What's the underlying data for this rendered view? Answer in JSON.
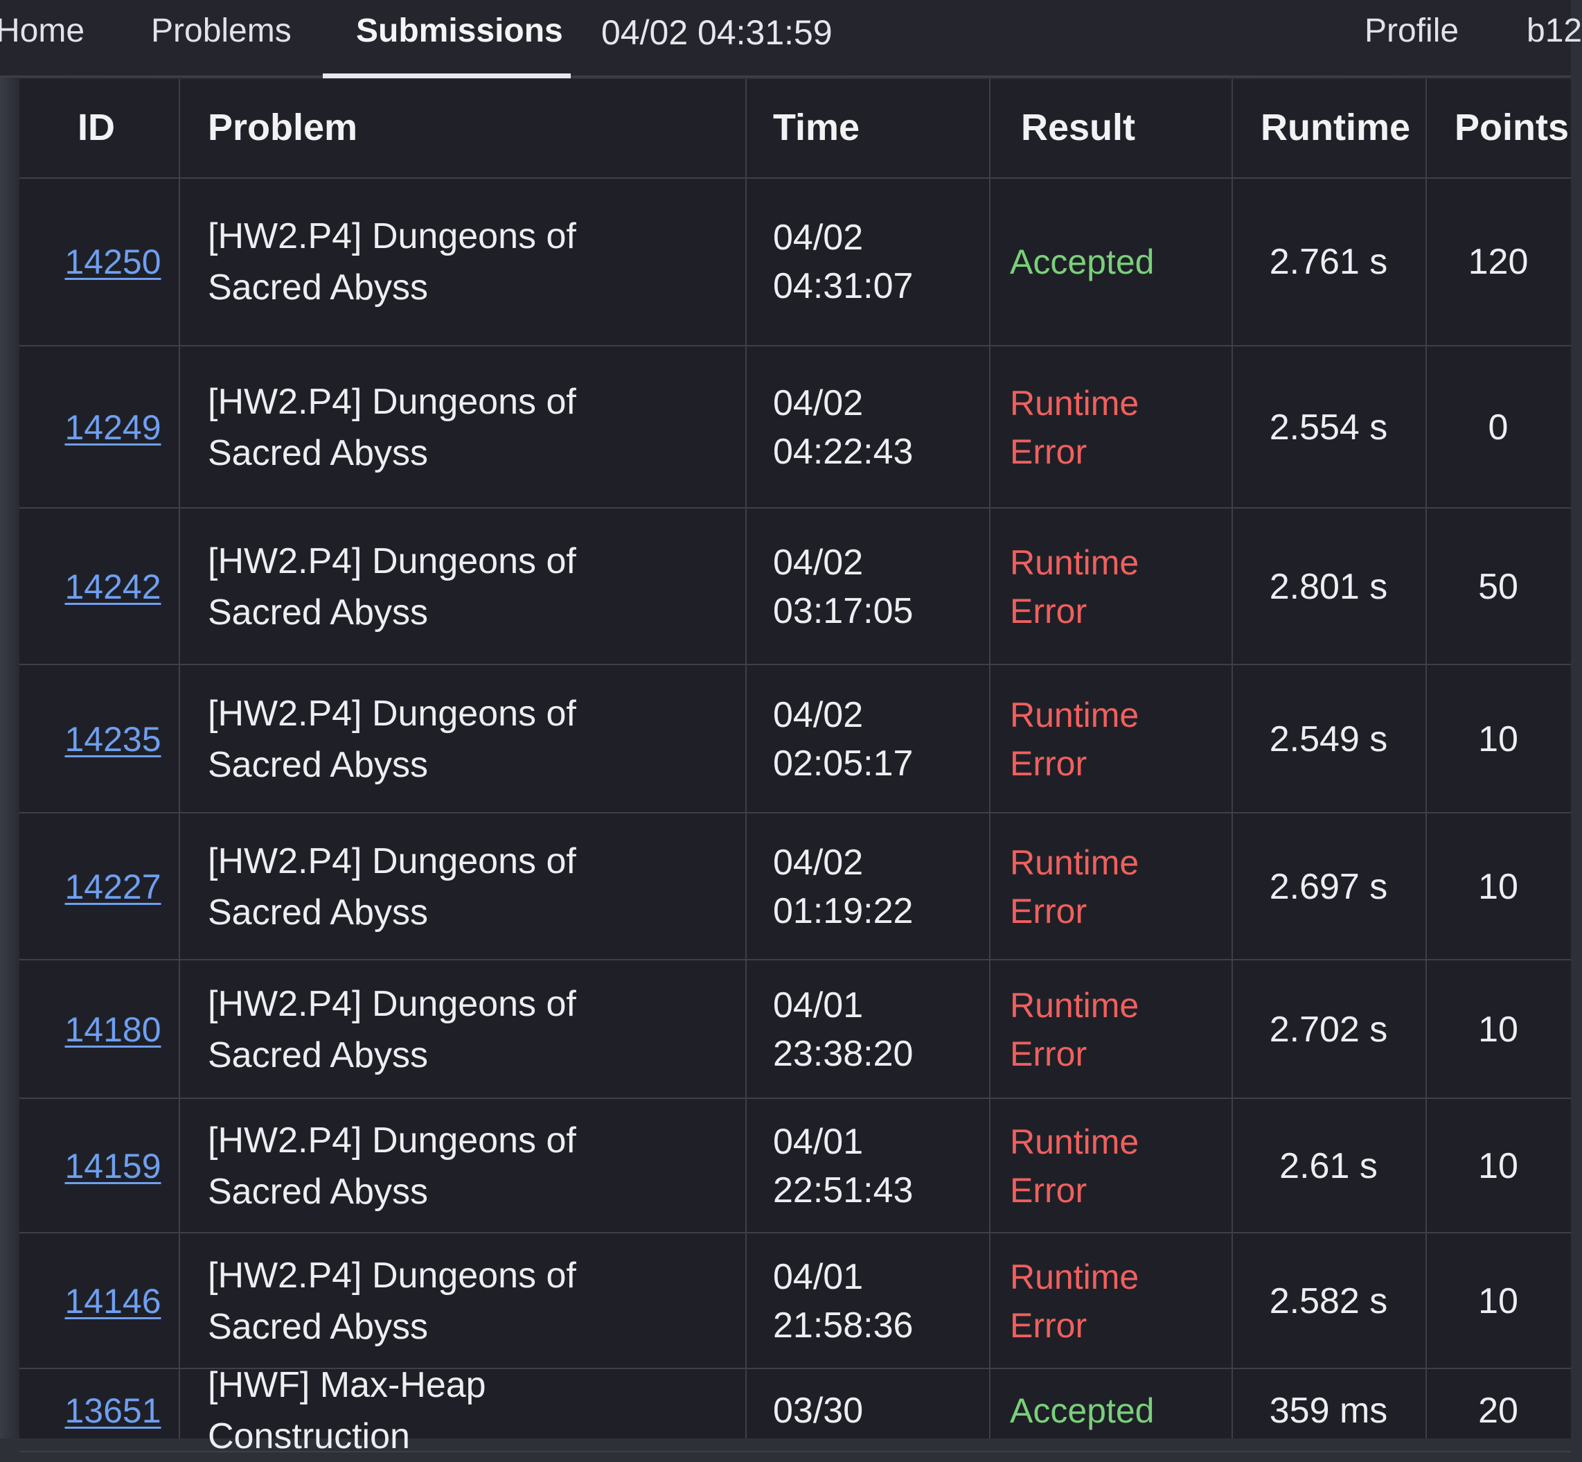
{
  "nav": {
    "home": "Home",
    "problems": "Problems",
    "submissions": "Submissions",
    "clock": "04/02 04:31:59",
    "profile": "Profile",
    "user": "b12"
  },
  "table": {
    "headers": {
      "id": "ID",
      "problem": "Problem",
      "time": "Time",
      "result": "Result",
      "runtime": "Runtime",
      "points": "Points"
    },
    "rows": [
      {
        "id": "14250",
        "problem": "[HW2.P4] Dungeons of Sacred Abyss",
        "date": "04/02",
        "clock": "04:31:07",
        "result": "Accepted",
        "status": "ok",
        "runtime": "2.761 s",
        "points": "120"
      },
      {
        "id": "14249",
        "problem": "[HW2.P4] Dungeons of Sacred Abyss",
        "date": "04/02",
        "clock": "04:22:43",
        "result": "Runtime Error",
        "status": "bad",
        "runtime": "2.554 s",
        "points": "0"
      },
      {
        "id": "14242",
        "problem": "[HW2.P4] Dungeons of Sacred Abyss",
        "date": "04/02",
        "clock": "03:17:05",
        "result": "Runtime Error",
        "status": "bad",
        "runtime": "2.801 s",
        "points": "50"
      },
      {
        "id": "14235",
        "problem": "[HW2.P4] Dungeons of Sacred Abyss",
        "date": "04/02",
        "clock": "02:05:17",
        "result": "Runtime Error",
        "status": "bad",
        "runtime": "2.549 s",
        "points": "10"
      },
      {
        "id": "14227",
        "problem": "[HW2.P4] Dungeons of Sacred Abyss",
        "date": "04/02",
        "clock": "01:19:22",
        "result": "Runtime Error",
        "status": "bad",
        "runtime": "2.697 s",
        "points": "10"
      },
      {
        "id": "14180",
        "problem": "[HW2.P4] Dungeons of Sacred Abyss",
        "date": "04/01",
        "clock": "23:38:20",
        "result": "Runtime Error",
        "status": "bad",
        "runtime": "2.702 s",
        "points": "10"
      },
      {
        "id": "14159",
        "problem": "[HW2.P4] Dungeons of Sacred Abyss",
        "date": "04/01",
        "clock": "22:51:43",
        "result": "Runtime Error",
        "status": "bad",
        "runtime": "2.61 s",
        "points": "10"
      },
      {
        "id": "14146",
        "problem": "[HW2.P4] Dungeons of Sacred Abyss",
        "date": "04/01",
        "clock": "21:58:36",
        "result": "Runtime Error",
        "status": "bad",
        "runtime": "2.582 s",
        "points": "10"
      },
      {
        "id": "13651",
        "problem": "[HWF] Max-Heap Construction",
        "date": "03/30",
        "clock": "",
        "result": "Accepted",
        "status": "ok",
        "runtime": "359 ms",
        "points": "20"
      }
    ]
  },
  "colors": {
    "accepted": "#7ad07a",
    "runtime_error": "#f0605e",
    "link": "#6f9ff0",
    "background": "#1f2027"
  }
}
